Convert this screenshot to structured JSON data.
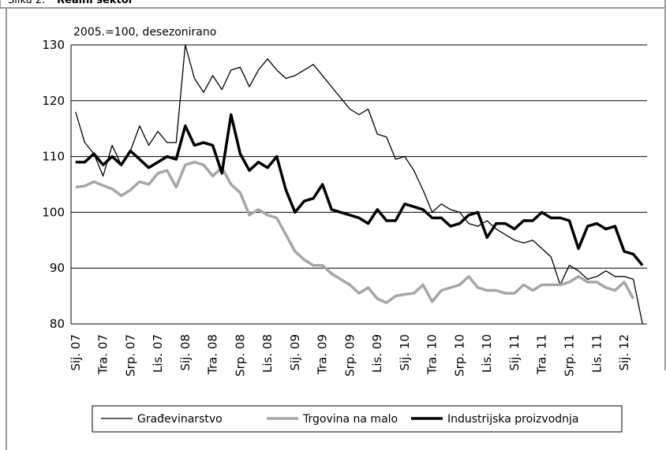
{
  "chart_data": {
    "type": "line",
    "figure_label": "Slika 2.",
    "title": "Realni sektor",
    "subtitle": "2005.=100, desezonirano",
    "categories": [
      "Sij. 07",
      null,
      null,
      "Tra. 07",
      null,
      null,
      "Srp. 07",
      null,
      null,
      "Lis. 07",
      null,
      null,
      "Sij. 08",
      null,
      null,
      "Tra. 08",
      null,
      null,
      "Srp. 08",
      null,
      null,
      "Lis. 08",
      null,
      null,
      "Sij. 09",
      null,
      null,
      "Tra. 09",
      null,
      null,
      "Srp. 09",
      null,
      null,
      "Lis. 09",
      null,
      null,
      "Sij. 10",
      null,
      null,
      "Tra. 10",
      null,
      null,
      "Srp. 10",
      null,
      null,
      "Lis. 10",
      null,
      null,
      "Sij. 11",
      null,
      null,
      "Tra. 11",
      null,
      null,
      "Srp. 11",
      null,
      null,
      "Lis. 11",
      null,
      null,
      "Sij. 12",
      null,
      null
    ],
    "series": [
      {
        "name": "Građevinarstvo",
        "color": "#000000",
        "width": 1.3,
        "values": [
          118,
          112.5,
          110.5,
          106.5,
          112,
          108.5,
          111,
          115.5,
          112,
          114.5,
          112.5,
          112.5,
          130,
          124,
          121.5,
          124.5,
          122,
          125.5,
          126,
          122.5,
          125.5,
          127.5,
          125.5,
          124,
          124.5,
          125.5,
          126.5,
          124.5,
          122.5,
          120.5,
          118.5,
          117.5,
          118.5,
          114,
          113.5,
          109.5,
          110,
          107.5,
          104,
          100,
          101.5,
          100.5,
          100,
          98,
          97.5,
          98.5,
          97,
          96,
          95,
          94.5,
          95,
          93.5,
          92,
          87,
          90.5,
          89.5,
          88,
          88.5,
          89.5,
          88.5,
          88.5,
          88,
          80
        ]
      },
      {
        "name": "Trgovina na malo",
        "color": "#a6a6a6",
        "width": 3.5,
        "values": [
          104.5,
          104.7,
          105.5,
          104.8,
          104.2,
          103,
          104,
          105.5,
          105,
          107,
          107.5,
          104.5,
          108.5,
          109,
          108.5,
          106.5,
          108,
          105,
          103.5,
          99.5,
          100.5,
          99.5,
          99,
          96,
          93,
          91.5,
          90.5,
          90.5,
          89,
          88,
          87,
          85.5,
          86.5,
          84.5,
          83.8,
          85,
          85.3,
          85.5,
          87,
          84,
          86,
          86.5,
          87,
          88.5,
          86.5,
          86,
          86,
          85.5,
          85.5,
          87,
          86,
          87,
          87,
          87,
          87.5,
          88.5,
          87.5,
          87.5,
          86.5,
          86,
          87.5,
          84.5,
          null
        ]
      },
      {
        "name": "Industrijska proizvodnja",
        "color": "#000000",
        "width": 3.5,
        "values": [
          109,
          109,
          110.5,
          108.5,
          110,
          108.5,
          111,
          109.5,
          108,
          109,
          110,
          109.5,
          115.5,
          112,
          112.5,
          112,
          107,
          117.5,
          110.5,
          107.5,
          109,
          108,
          110,
          104,
          100,
          102,
          102.5,
          105,
          100.5,
          100,
          99.5,
          99,
          98,
          100.5,
          98.5,
          98.5,
          101.5,
          101,
          100.5,
          99,
          99,
          97.5,
          98,
          99.5,
          100,
          95.5,
          98,
          98,
          97,
          98.5,
          98.5,
          100,
          99,
          99,
          98.5,
          93.5,
          97.5,
          98,
          97,
          97.5,
          93,
          92.5,
          90.5
        ]
      }
    ],
    "ylim": [
      80,
      130
    ],
    "yticks": [
      80,
      90,
      100,
      110,
      120,
      130
    ],
    "grid": true,
    "legend": "bottom"
  }
}
